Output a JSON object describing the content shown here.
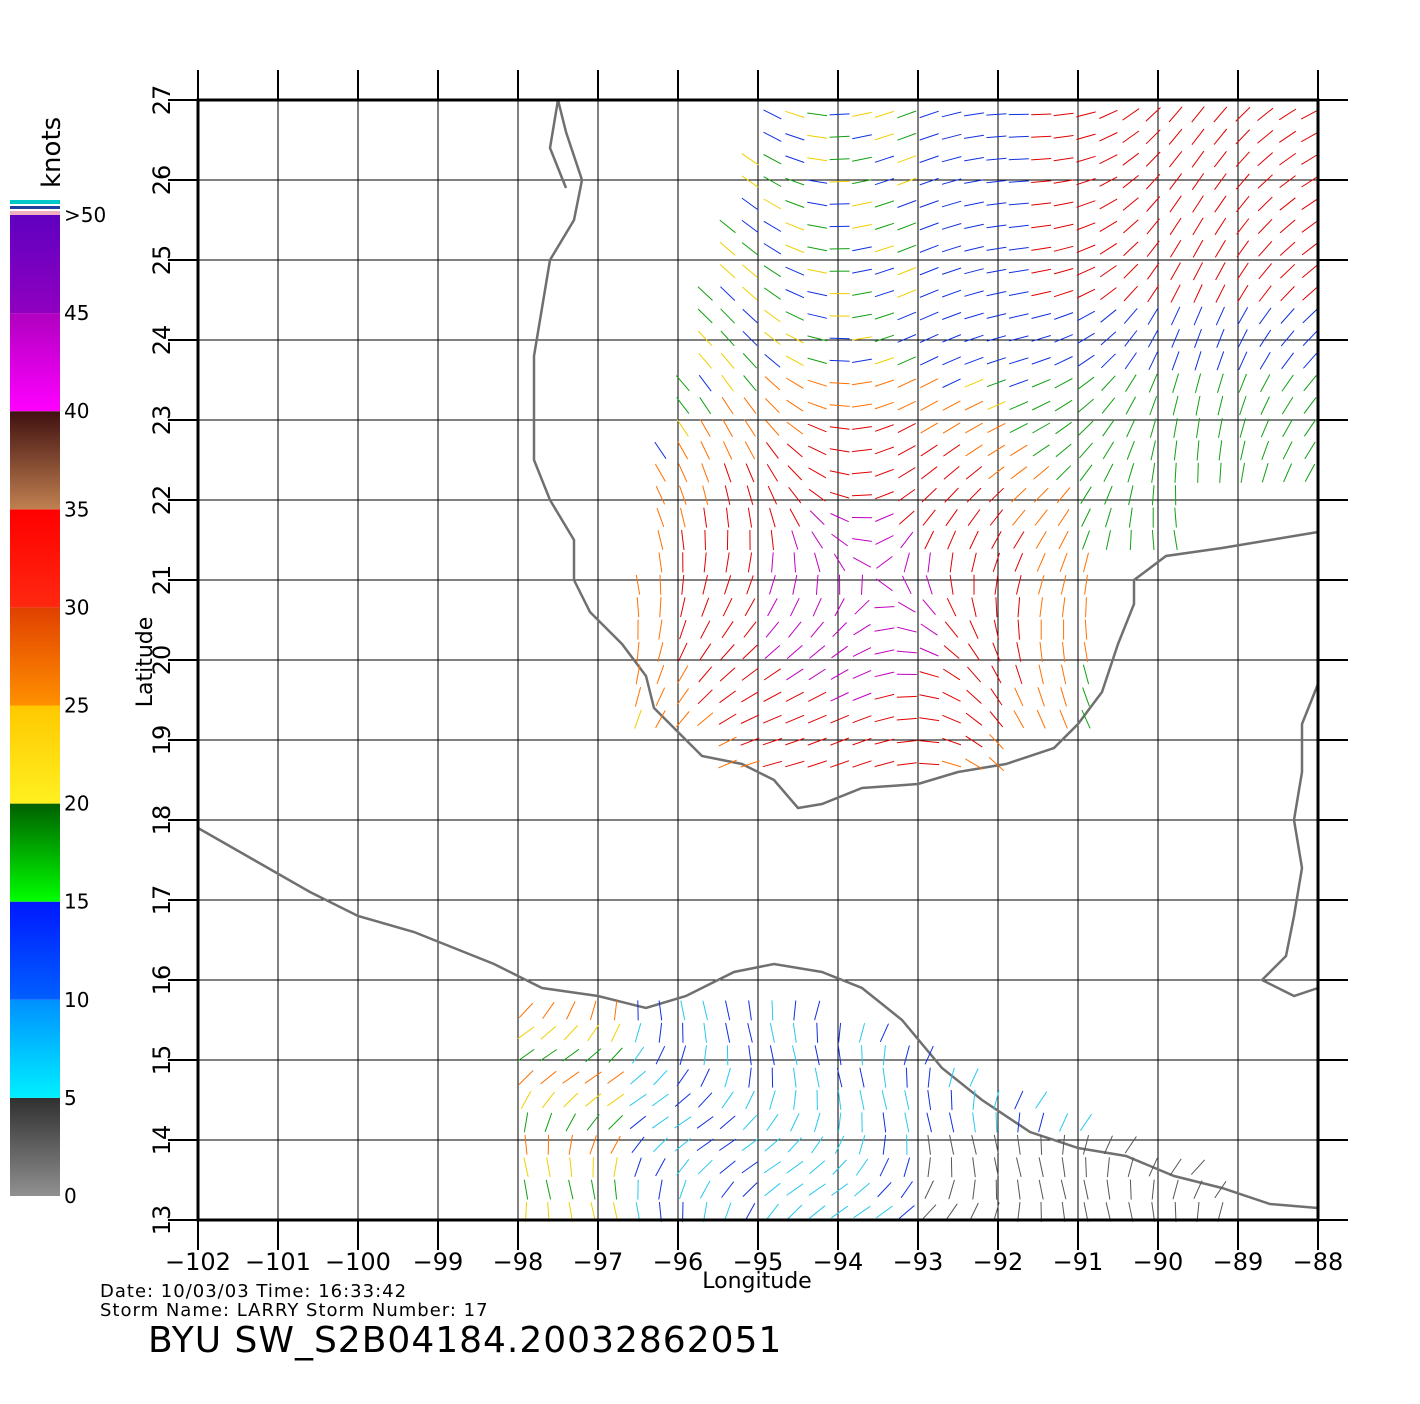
{
  "map": {
    "xlabel": "Longitude",
    "ylabel": "Latitude",
    "lon_range": [
      -102,
      -88
    ],
    "lat_range": [
      13,
      27
    ],
    "lon_ticks": [
      "−102",
      "−101",
      "−100",
      "−99",
      "−98",
      "−97",
      "−96",
      "−95",
      "−94",
      "−93",
      "−92",
      "−91",
      "−90",
      "−89",
      "−88"
    ],
    "lat_ticks": [
      "13",
      "14",
      "15",
      "16",
      "17",
      "18",
      "19",
      "20",
      "21",
      "22",
      "23",
      "24",
      "25",
      "26",
      "27"
    ],
    "grid": true,
    "coast_color": "#707070",
    "vector_regions": [
      {
        "name": "gulf",
        "lon_range": [
          -96.5,
          -88
        ],
        "lat_range": [
          18.6,
          27
        ]
      },
      {
        "name": "pacific",
        "lon_range": [
          -97.9,
          -89.1
        ],
        "lat_range": [
          13,
          15.8
        ]
      }
    ]
  },
  "colorbar": {
    "unit": "knots",
    "labels": [
      "0",
      "5",
      "10",
      "15",
      "20",
      "25",
      "30",
      "35",
      "40",
      "45",
      ">50"
    ],
    "bands": [
      {
        "from": 0,
        "to": 5,
        "top": "#303030",
        "bottom": "#909090"
      },
      {
        "from": 5,
        "to": 10,
        "top": "#0090ff",
        "bottom": "#00f0ff"
      },
      {
        "from": 10,
        "to": 15,
        "top": "#0018ff",
        "bottom": "#0060ff"
      },
      {
        "from": 15,
        "to": 20,
        "top": "#006000",
        "bottom": "#00ff00"
      },
      {
        "from": 20,
        "to": 25,
        "top": "#ffc800",
        "bottom": "#fff020"
      },
      {
        "from": 25,
        "to": 30,
        "top": "#e04000",
        "bottom": "#ff9000"
      },
      {
        "from": 30,
        "to": 35,
        "top": "#ff0000",
        "bottom": "#ff2810"
      },
      {
        "from": 35,
        "to": 40,
        "top": "#401010",
        "bottom": "#c08050"
      },
      {
        "from": 40,
        "to": 45,
        "top": "#b000c0",
        "bottom": "#ff00ff"
      },
      {
        "from": 45,
        "to": 50,
        "top": "#6000c0",
        "bottom": "#9000c0"
      }
    ]
  },
  "info": {
    "line1": "Date: 10/03/03   Time: 16:33:42",
    "line2": "Storm Name: LARRY   Storm Number: 17",
    "file_id": "BYU SW_S2B04184.20032862051"
  }
}
